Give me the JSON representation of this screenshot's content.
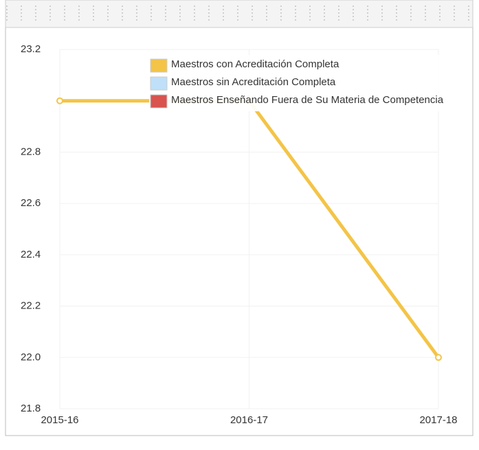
{
  "chart_data": {
    "type": "line",
    "categories": [
      "2015-16",
      "2016-17",
      "2017-18"
    ],
    "series": [
      {
        "name": "Maestros con Acreditación Completa",
        "color": "#f3c447",
        "values": [
          23,
          23,
          22
        ]
      },
      {
        "name": "Maestros sin Acreditación Completa",
        "color": "#bfe0f8",
        "values": [
          null,
          null,
          null
        ]
      },
      {
        "name": "Maestros Enseñando Fuera de Su Materia de Competencia",
        "color": "#d9534f",
        "values": [
          null,
          null,
          null
        ]
      }
    ],
    "ylim": [
      21.8,
      23.2
    ],
    "yticks": [
      21.8,
      {
        "value": 22,
        "label": "22.0"
      },
      22.2,
      22.4,
      22.6,
      22.8,
      23.2
    ],
    "grid": true,
    "legend": "top"
  }
}
